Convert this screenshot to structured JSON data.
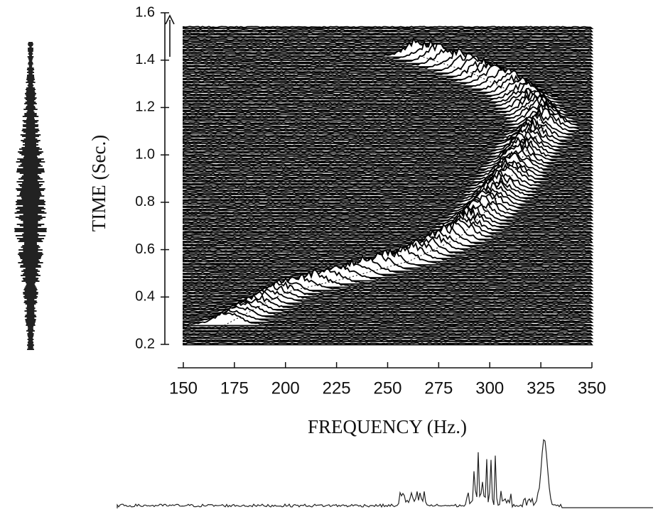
{
  "chart_data": {
    "type": "waterfall",
    "x_label": "FREQUENCY (Hz.)",
    "y_label": "TIME (Sec.)",
    "xlim": [
      150,
      350
    ],
    "xticks": [
      150,
      175,
      200,
      225,
      250,
      275,
      300,
      325,
      350
    ],
    "ylim": [
      0.2,
      1.6
    ],
    "yticks": [
      0.2,
      0.4,
      0.6,
      0.8,
      {
        "value": 1,
        "label": "1.0"
      },
      1.2,
      1.4,
      1.6
    ],
    "color": "#000000",
    "ridge": {
      "x": [
        170,
        200,
        230,
        260,
        285,
        300,
        310,
        320,
        327,
        315,
        290,
        265
      ],
      "y": [
        0.28,
        0.42,
        0.48,
        0.55,
        0.65,
        0.78,
        0.9,
        1.05,
        1.12,
        1.25,
        1.35,
        1.42
      ]
    }
  }
}
